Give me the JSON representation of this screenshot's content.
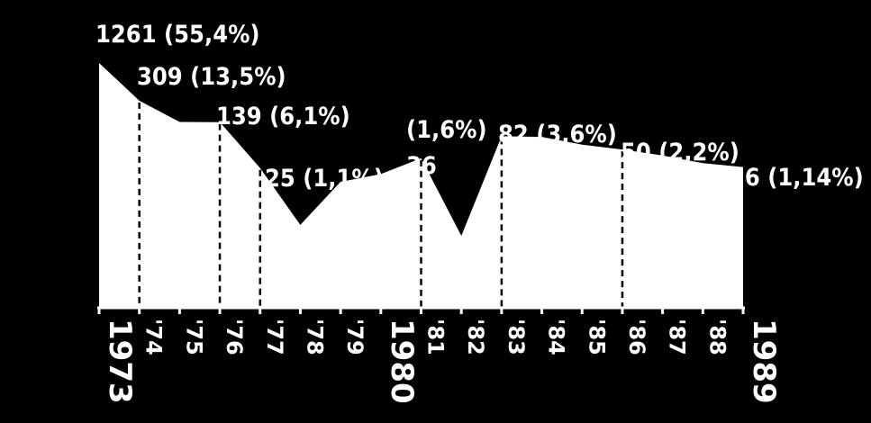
{
  "chart_data": {
    "type": "area",
    "x": [
      "1973",
      "'74",
      "'75",
      "'76",
      "'77",
      "'78",
      "'79",
      "1980",
      "'81",
      "'82",
      "'83",
      "'84",
      "'85",
      "'86",
      "'87",
      "'88",
      "1989"
    ],
    "major_ticks": [
      "1973",
      "1980",
      "1989"
    ],
    "values": [
      1261,
      309,
      140,
      139,
      25,
      3,
      15,
      20,
      36,
      2,
      82,
      80,
      60,
      50,
      40,
      30,
      26
    ],
    "ylim": [
      0,
      1400
    ],
    "scale": "nonlinear (compressed)",
    "annotations": [
      {
        "year": "1973",
        "text": "1261 (55,4%)"
      },
      {
        "year": "'74",
        "text": "309 (13,5%)"
      },
      {
        "year": "'76",
        "text": "139 (6,1%)"
      },
      {
        "year": "'77",
        "text": "25 (1,1%)"
      },
      {
        "year": "'81",
        "text": "(1,6%)"
      },
      {
        "year": "'81",
        "text": "36"
      },
      {
        "year": "'83",
        "text": "82 (3,6%)"
      },
      {
        "year": "'86",
        "text": "50 (2,2%)"
      },
      {
        "year": "1989",
        "text": "26 (1,14%)"
      }
    ],
    "grid": false,
    "legend": "none",
    "colors": {
      "background": "#000000",
      "area": "#ffffff",
      "text": "#ffffff",
      "dashes": "#000000"
    }
  }
}
